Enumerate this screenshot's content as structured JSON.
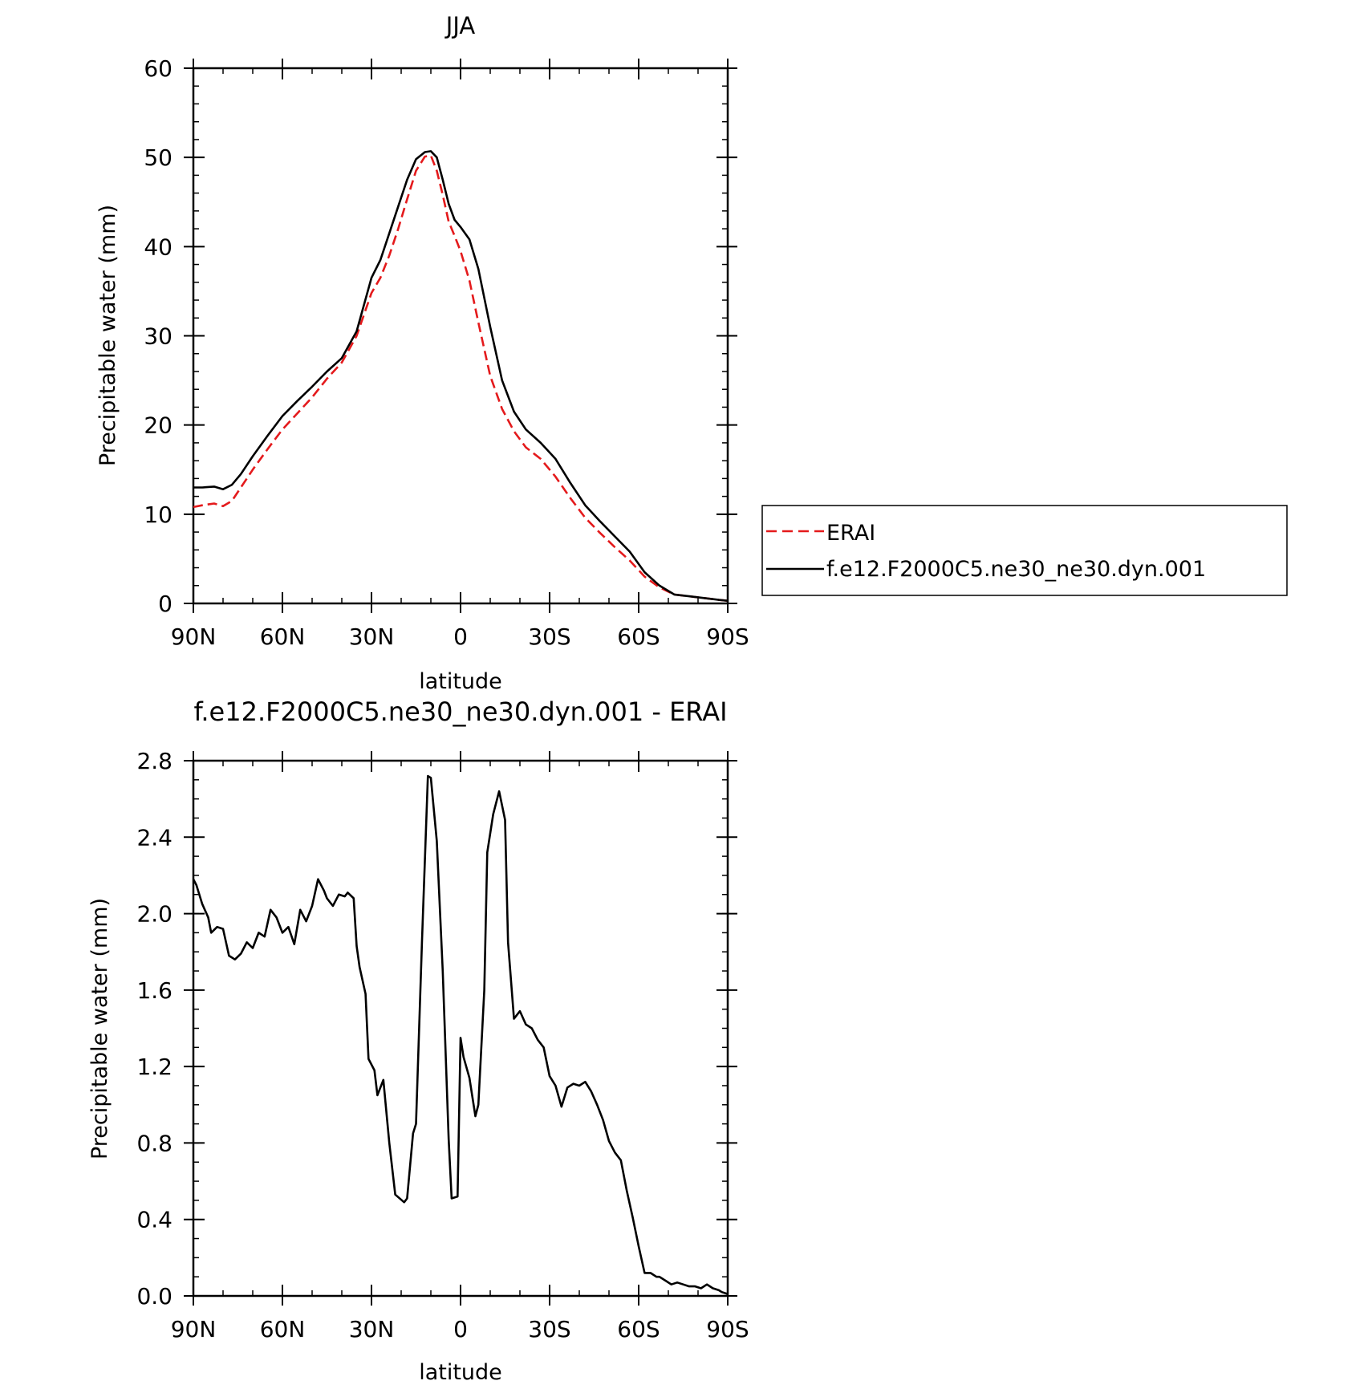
{
  "chart_data": [
    {
      "type": "line",
      "title": "JJA",
      "xlabel": "latitude",
      "ylabel": "Precipitable water (mm)",
      "xlim": [
        90,
        -90
      ],
      "ylim": [
        0,
        60
      ],
      "x_ticks": [
        90,
        60,
        30,
        0,
        -30,
        -60,
        -90
      ],
      "x_tick_labels": [
        "90N",
        "60N",
        "30N",
        "0",
        "30S",
        "60S",
        "90S"
      ],
      "y_ticks": [
        0,
        10,
        20,
        30,
        40,
        50,
        60
      ],
      "y_tick_labels": [
        "0",
        "10",
        "20",
        "30",
        "40",
        "50",
        "60"
      ],
      "legend": {
        "position": "right",
        "entries": [
          {
            "label": "ERAI",
            "color": "#e41a1c",
            "style": "dashed"
          },
          {
            "label": "f.e12.F2000C5.ne30_ne30.dyn.001",
            "color": "#000000",
            "style": "solid"
          }
        ]
      },
      "series": [
        {
          "name": "ERAI",
          "color": "#e41a1c",
          "style": "dashed",
          "x": [
            90,
            87,
            83,
            80,
            77,
            74,
            70,
            65,
            60,
            55,
            50,
            45,
            40,
            35,
            30,
            27,
            24,
            21,
            18,
            15,
            12,
            10,
            8,
            6,
            4,
            2,
            0,
            -3,
            -6,
            -10,
            -14,
            -18,
            -22,
            -27,
            -32,
            -37,
            -42,
            -47,
            -52,
            -57,
            -62,
            -67,
            -72,
            -77,
            -82,
            -87,
            -90
          ],
          "y": [
            10.8,
            11.0,
            11.2,
            10.9,
            11.5,
            13.0,
            15.0,
            17.3,
            19.5,
            21.3,
            23.1,
            25.2,
            27.0,
            30.0,
            34.8,
            36.5,
            39.0,
            42.0,
            45.3,
            48.5,
            50.1,
            50.2,
            48.5,
            45.8,
            42.8,
            41.2,
            39.5,
            36.2,
            31.5,
            25.5,
            21.8,
            19.3,
            17.5,
            16.2,
            14.2,
            11.8,
            9.6,
            7.9,
            6.3,
            4.8,
            3.0,
            1.8,
            1.0,
            0.8,
            0.6,
            0.4,
            0.3
          ]
        },
        {
          "name": "f.e12.F2000C5.ne30_ne30.dyn.001",
          "color": "#000000",
          "style": "solid",
          "x": [
            90,
            87,
            83,
            80,
            77,
            74,
            70,
            65,
            60,
            55,
            50,
            45,
            40,
            35,
            30,
            27,
            24,
            21,
            18,
            15,
            12,
            10,
            8,
            6,
            4,
            2,
            0,
            -3,
            -6,
            -10,
            -14,
            -18,
            -22,
            -27,
            -32,
            -37,
            -42,
            -47,
            -52,
            -57,
            -62,
            -67,
            -72,
            -77,
            -82,
            -87,
            -90
          ],
          "y": [
            13.0,
            13.0,
            13.1,
            12.8,
            13.3,
            14.5,
            16.5,
            18.8,
            21.0,
            22.7,
            24.3,
            26.0,
            27.5,
            30.5,
            36.5,
            38.5,
            41.5,
            44.5,
            47.5,
            49.8,
            50.6,
            50.7,
            50.0,
            47.5,
            44.8,
            43.0,
            42.2,
            40.8,
            37.5,
            31.0,
            25.0,
            21.5,
            19.5,
            18.0,
            16.2,
            13.5,
            11.0,
            9.2,
            7.5,
            5.8,
            3.5,
            2.0,
            1.0,
            0.8,
            0.6,
            0.4,
            0.3
          ]
        }
      ]
    },
    {
      "type": "line",
      "title": "f.e12.F2000C5.ne30_ne30.dyn.001 - ERAI",
      "xlabel": "latitude",
      "ylabel": "Precipitable water (mm)",
      "xlim": [
        90,
        -90
      ],
      "ylim": [
        0.0,
        2.8
      ],
      "x_ticks": [
        90,
        60,
        30,
        0,
        -30,
        -60,
        -90
      ],
      "x_tick_labels": [
        "90N",
        "60N",
        "30N",
        "0",
        "30S",
        "60S",
        "90S"
      ],
      "y_ticks": [
        0.0,
        0.4,
        0.8,
        1.2,
        1.6,
        2.0,
        2.4,
        2.8
      ],
      "y_tick_labels": [
        "0.0",
        "0.4",
        "0.8",
        "1.2",
        "1.6",
        "2.0",
        "2.4",
        "2.8"
      ],
      "series": [
        {
          "color": "#000000",
          "style": "solid",
          "x": [
            90,
            89,
            87,
            85,
            84,
            82,
            80,
            78,
            76,
            74,
            72,
            70,
            68,
            66,
            64,
            62,
            60,
            58,
            56,
            54,
            52,
            50,
            48,
            46,
            45,
            43,
            41,
            39,
            38,
            36,
            35,
            34,
            32,
            31,
            29,
            28,
            26,
            24,
            22,
            19,
            18,
            16,
            15,
            13,
            11,
            10,
            8,
            6,
            4,
            3,
            1,
            0,
            -1,
            -3,
            -5,
            -6,
            -8,
            -9,
            -11,
            -13,
            -15,
            -16,
            -18,
            -20,
            -22,
            -24,
            -26,
            -28,
            -30,
            -32,
            -34,
            -36,
            -38,
            -40,
            -42,
            -44,
            -46,
            -48,
            -50,
            -52,
            -54,
            -56,
            -58,
            -60,
            -62,
            -64,
            -66,
            -67,
            -69,
            -71,
            -73,
            -75,
            -77,
            -79,
            -81,
            -83,
            -85,
            -87,
            -88,
            -90
          ],
          "y": [
            2.18,
            2.15,
            2.05,
            1.98,
            1.9,
            1.93,
            1.92,
            1.78,
            1.76,
            1.79,
            1.85,
            1.82,
            1.9,
            1.88,
            2.02,
            1.98,
            1.9,
            1.93,
            1.84,
            2.02,
            1.96,
            2.04,
            2.18,
            2.12,
            2.08,
            2.04,
            2.1,
            2.09,
            2.11,
            2.08,
            1.83,
            1.72,
            1.58,
            1.24,
            1.18,
            1.05,
            1.13,
            0.8,
            0.53,
            0.49,
            0.51,
            0.85,
            0.9,
            1.85,
            2.72,
            2.71,
            2.38,
            1.7,
            0.82,
            0.51,
            0.52,
            1.35,
            1.25,
            1.14,
            0.94,
            1.0,
            1.6,
            2.32,
            2.52,
            2.64,
            2.49,
            1.85,
            1.45,
            1.49,
            1.42,
            1.4,
            1.34,
            1.3,
            1.15,
            1.1,
            0.99,
            1.09,
            1.11,
            1.1,
            1.12,
            1.07,
            1.0,
            0.92,
            0.81,
            0.75,
            0.71,
            0.55,
            0.41,
            0.26,
            0.12,
            0.12,
            0.1,
            0.1,
            0.08,
            0.06,
            0.07,
            0.06,
            0.05,
            0.05,
            0.04,
            0.06,
            0.04,
            0.03,
            0.02,
            0.01
          ]
        }
      ]
    }
  ]
}
